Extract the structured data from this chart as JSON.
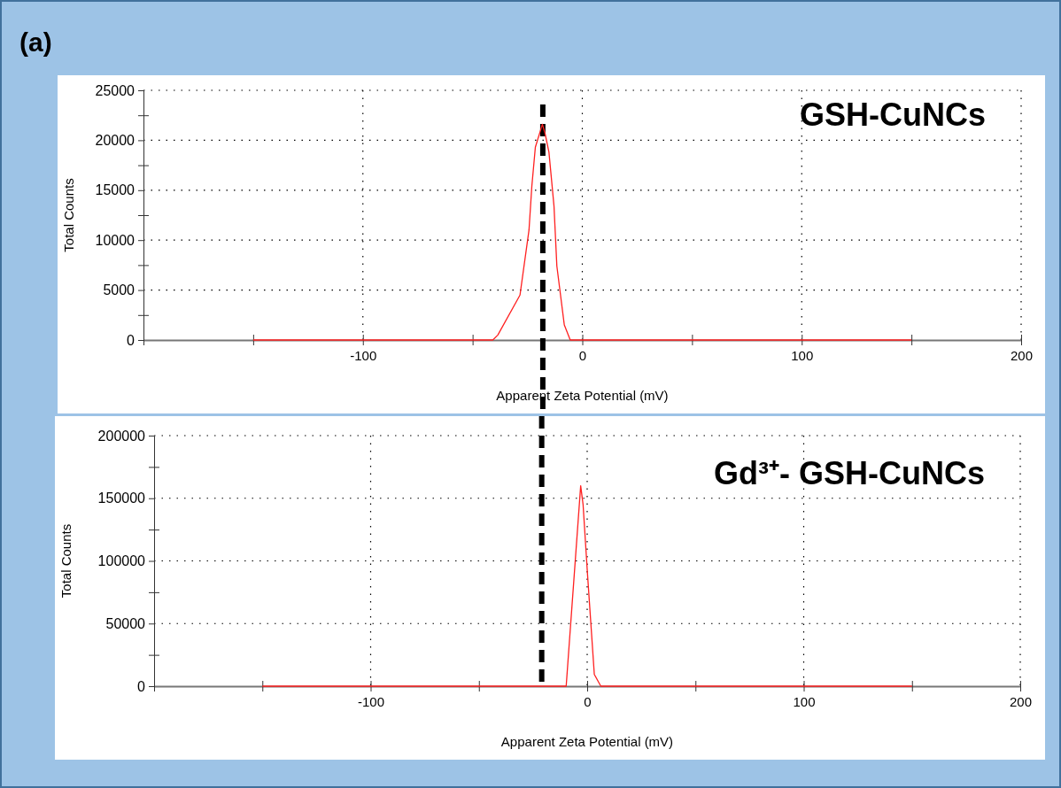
{
  "chart_data": [
    {
      "type": "line",
      "title": "GSH-CuNCs",
      "xlabel": "Apparent Zeta Potential (mV)",
      "ylabel": "Total Counts",
      "annotations": [
        "(a)"
      ],
      "series": [
        {
          "color": "#ff2020",
          "x": [
            -150,
            -40.8,
            -38.5,
            -28.4,
            -24.3,
            -23,
            -21.4,
            -18.2,
            -17,
            -15.2,
            -12.9,
            -11.6,
            -8.2,
            -5.5,
            150
          ],
          "values": [
            0,
            0,
            500,
            4500,
            11000,
            15400,
            19300,
            21600,
            20700,
            18800,
            13400,
            7400,
            1500,
            0,
            0
          ]
        }
      ],
      "xlim": [
        -200,
        200
      ],
      "xticks": [
        {
          "value": -200,
          "label": null
        },
        {
          "value": -150,
          "label": null
        },
        -100,
        {
          "value": -50,
          "label": null
        },
        0,
        {
          "value": 50,
          "label": null
        },
        100,
        {
          "value": 150,
          "label": null
        },
        200
      ],
      "ylim": [
        0,
        25000
      ],
      "yticks": [
        0,
        {
          "value": 2500,
          "label": null
        },
        5000,
        {
          "value": 7500,
          "label": null
        },
        10000,
        {
          "value": 12500,
          "label": null
        },
        15000,
        {
          "value": 17500,
          "label": null
        },
        20000,
        {
          "value": 22500,
          "label": null
        },
        25000
      ],
      "grid": true,
      "marker": "none",
      "line_style": "solid",
      "ref_lines": [
        {
          "axis": "x",
          "value": -18,
          "color": "#000000",
          "line_style": "dashed"
        }
      ]
    },
    {
      "type": "line",
      "title": "Gd³⁺- GSH-CuNCs",
      "xlabel": "Apparent Zeta Potential (mV)",
      "ylabel": "Total Counts",
      "series": [
        {
          "color": "#ff2020",
          "x": [
            -150,
            -9.7,
            -3,
            -1.9,
            0.1,
            3.3,
            6.3,
            150
          ],
          "values": [
            0,
            0,
            160000,
            145000,
            90700,
            9400,
            0,
            0
          ]
        }
      ],
      "xlim": [
        -200,
        200
      ],
      "xticks": [
        {
          "value": -200,
          "label": null
        },
        {
          "value": -150,
          "label": null
        },
        -100,
        {
          "value": -50,
          "label": null
        },
        0,
        {
          "value": 50,
          "label": null
        },
        100,
        {
          "value": 150,
          "label": null
        },
        200
      ],
      "ylim": [
        0,
        200000
      ],
      "yticks": [
        0,
        {
          "value": 25000,
          "label": null
        },
        50000,
        {
          "value": 75000,
          "label": null
        },
        100000,
        {
          "value": 125000,
          "label": null
        },
        150000,
        {
          "value": 175000,
          "label": null
        },
        200000
      ],
      "grid": true,
      "marker": "none",
      "line_style": "solid",
      "ref_lines": [
        {
          "axis": "x",
          "value": -21,
          "color": "#000000",
          "line_style": "dashed"
        }
      ]
    }
  ]
}
